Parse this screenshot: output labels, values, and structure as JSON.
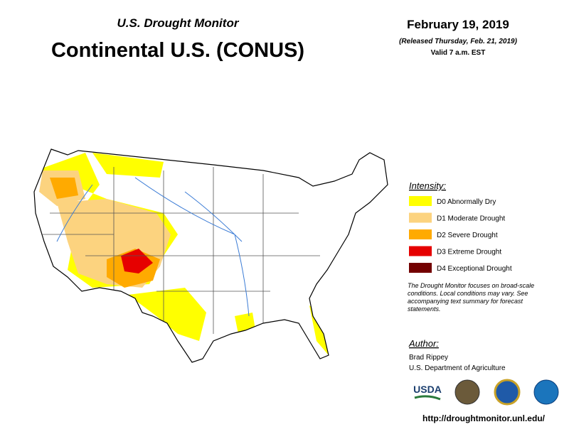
{
  "header": {
    "subtitle": "U.S. Drought Monitor",
    "title": "Continental U.S. (CONUS)",
    "date": "February 19, 2019",
    "released": "(Released Thursday, Feb. 21, 2019)",
    "valid": "Valid 7 a.m. EST"
  },
  "legend": {
    "title": "Intensity:",
    "items": [
      {
        "label": "D0 Abnormally Dry",
        "color": "#ffff00"
      },
      {
        "label": "D1 Moderate Drought",
        "color": "#fcd37f"
      },
      {
        "label": "D2 Severe Drought",
        "color": "#ffaa00"
      },
      {
        "label": "D3 Extreme Drought",
        "color": "#e60000"
      },
      {
        "label": "D4 Exceptional Drought",
        "color": "#730000"
      }
    ],
    "note": "The Drought Monitor focuses on broad-scale conditions. Local conditions may vary. See accompanying text summary for forecast statements."
  },
  "author": {
    "label": "Author:",
    "name": "Brad Rippey",
    "org": "U.S. Department of Agriculture"
  },
  "logos": {
    "usda": "USDA"
  },
  "url": "http://droughtmonitor.unl.edu/"
}
